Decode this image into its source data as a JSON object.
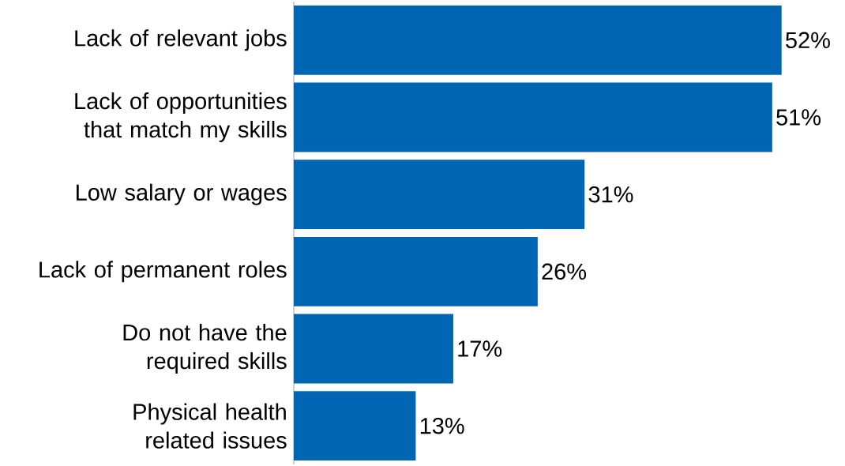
{
  "chart_data": {
    "type": "bar",
    "orientation": "horizontal",
    "categories": [
      "Lack of relevant jobs",
      "Lack of opportunities that match my skills",
      "Low salary or wages",
      "Lack of permanent roles",
      "Do not have the required skills",
      "Physical health related issues"
    ],
    "values": [
      52,
      51,
      31,
      26,
      17,
      13
    ],
    "value_labels": [
      "52%",
      "51%",
      "31%",
      "26%",
      "17%",
      "13%"
    ],
    "color": "#0066b3"
  }
}
